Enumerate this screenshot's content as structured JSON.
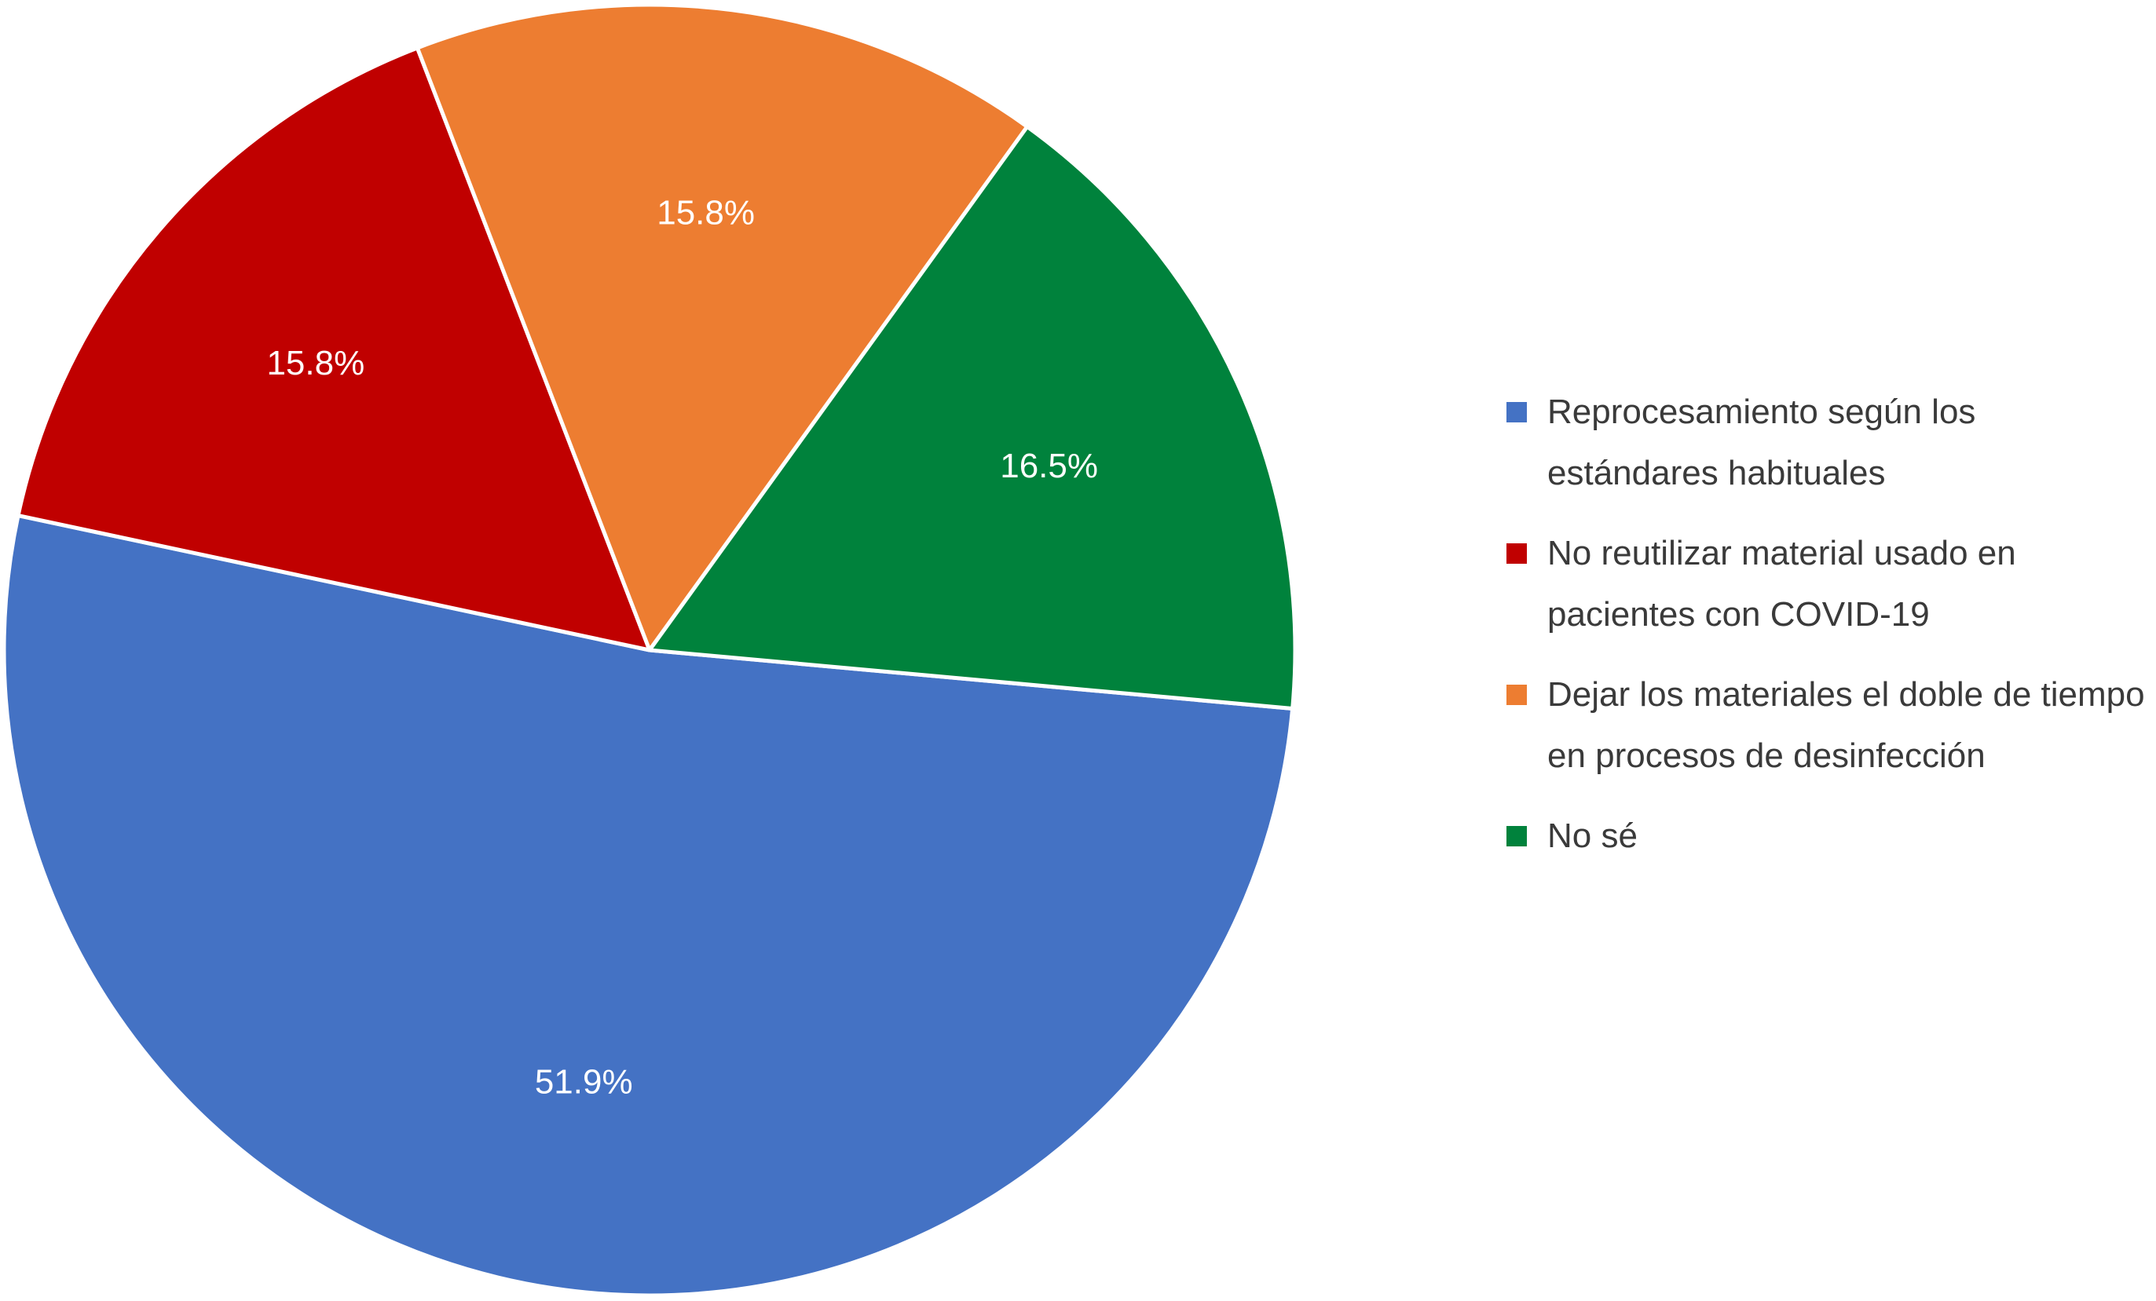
{
  "chart_data": {
    "type": "pie",
    "title": "",
    "slices": [
      {
        "label": "Reprocesamiento según los estándares habituales",
        "value": 51.9,
        "value_label": "51.9%",
        "color": "#4472C4"
      },
      {
        "label": "No reutilizar material usado en pacientes con COVID-19",
        "value": 15.8,
        "value_label": "15.8%",
        "color": "#C00000"
      },
      {
        "label": "Dejar los materiales el doble de tiempo en procesos de desinfección",
        "value": 15.8,
        "value_label": "15.8%",
        "color": "#ED7D31"
      },
      {
        "label": "No sé",
        "value": 16.5,
        "value_label": "16.5%",
        "color": "#00823C"
      }
    ],
    "legend_placement": "right"
  }
}
